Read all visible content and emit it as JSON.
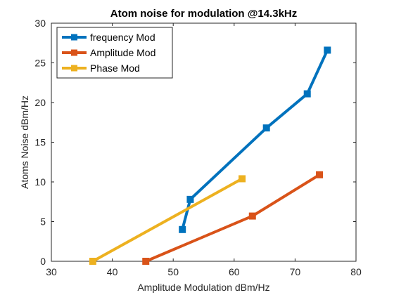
{
  "chart_data": {
    "type": "line",
    "title": "Atom noise for modulation @14.3kHz",
    "xlabel": "Amplitude Modulation dBm/Hz",
    "ylabel": "Atoms Noise dBm/Hz",
    "xlim": [
      30,
      80
    ],
    "ylim": [
      0,
      30
    ],
    "xticks": [
      "30",
      "40",
      "50",
      "60",
      "70",
      "80"
    ],
    "yticks": [
      "0",
      "5",
      "10",
      "15",
      "20",
      "25",
      "30"
    ],
    "grid": false,
    "legend_position": "top-left",
    "series": [
      {
        "name": "frequency Mod",
        "color": "#0072BD",
        "x": [
          51.5,
          52.8,
          65.3,
          72.0,
          75.3
        ],
        "y": [
          4.0,
          7.8,
          16.8,
          21.1,
          26.6
        ]
      },
      {
        "name": "Amplitude Mod",
        "color": "#D95319",
        "x": [
          45.5,
          63.0,
          74.0
        ],
        "y": [
          0.0,
          5.7,
          10.9
        ]
      },
      {
        "name": "Phase Mod",
        "color": "#EDB120",
        "x": [
          36.8,
          61.3
        ],
        "y": [
          0.0,
          10.4
        ]
      }
    ]
  }
}
